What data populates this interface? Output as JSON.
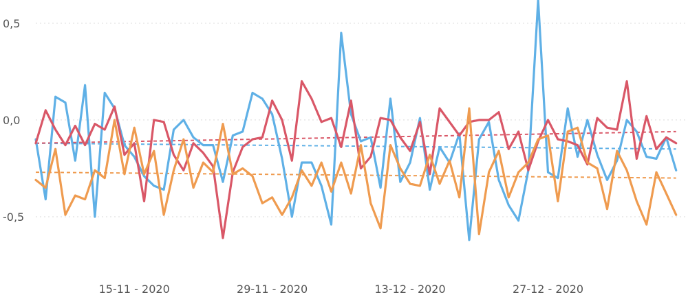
{
  "chart_data": {
    "type": "line",
    "title": "",
    "xlabel": "",
    "ylabel": "",
    "ylim": [
      -0.78,
      0.62
    ],
    "xlim": [
      "2020-11-05",
      "2021-01-10"
    ],
    "grid": true,
    "legend": "none",
    "yticks": [
      {
        "value": 0.5,
        "label": "0,5"
      },
      {
        "value": 0.0,
        "label": "0,0"
      },
      {
        "value": -0.5,
        "label": "-0,5"
      }
    ],
    "xticks": [
      {
        "value": "2020-11-15",
        "label": "15-11 - 2020"
      },
      {
        "value": "2020-11-29",
        "label": "29-11 - 2020"
      },
      {
        "value": "2020-12-13",
        "label": "13-12 - 2020"
      },
      {
        "value": "2020-12-27",
        "label": "27-12 - 2020"
      }
    ],
    "series": [
      {
        "color": "#5fb0e6",
        "start_date": "2020-11-05",
        "values": [
          -0.1,
          -0.41,
          0.12,
          0.09,
          -0.21,
          0.18,
          -0.5,
          0.14,
          0.06,
          -0.13,
          -0.19,
          -0.29,
          -0.34,
          -0.36,
          -0.05,
          0.0,
          -0.09,
          -0.13,
          -0.13,
          -0.32,
          -0.08,
          -0.06,
          0.14,
          0.11,
          0.03,
          -0.2,
          -0.5,
          -0.22,
          -0.22,
          -0.34,
          -0.54,
          0.45,
          0.03,
          -0.11,
          -0.09,
          -0.35,
          0.11,
          -0.32,
          -0.22,
          0.01,
          -0.36,
          -0.14,
          -0.22,
          -0.07,
          -0.62,
          -0.1,
          -0.01,
          -0.31,
          -0.44,
          -0.52,
          -0.26,
          0.62,
          -0.27,
          -0.3,
          0.06,
          -0.19,
          0.0,
          -0.18,
          -0.31,
          -0.21,
          0.0,
          -0.06,
          -0.19,
          -0.2,
          -0.09,
          -0.26
        ],
        "trend": [
          -0.12,
          -0.15
        ]
      },
      {
        "color": "#d95767",
        "start_date": "2020-11-05",
        "values": [
          -0.12,
          0.05,
          -0.05,
          -0.13,
          -0.03,
          -0.13,
          -0.02,
          -0.05,
          0.07,
          -0.18,
          -0.12,
          -0.42,
          0.0,
          -0.01,
          -0.18,
          -0.26,
          -0.12,
          -0.17,
          -0.24,
          -0.61,
          -0.27,
          -0.14,
          -0.1,
          -0.09,
          0.1,
          0.0,
          -0.21,
          0.2,
          0.11,
          -0.01,
          0.01,
          -0.14,
          0.1,
          -0.25,
          -0.19,
          0.01,
          0.0,
          -0.09,
          -0.16,
          -0.01,
          -0.28,
          0.06,
          -0.01,
          -0.08,
          -0.01,
          0.0,
          0.0,
          0.04,
          -0.15,
          -0.06,
          -0.26,
          -0.11,
          0.0,
          -0.1,
          -0.11,
          -0.13,
          -0.23,
          0.01,
          -0.04,
          -0.05,
          0.2,
          -0.2,
          0.02,
          -0.15,
          -0.09,
          -0.12
        ],
        "trend": [
          -0.12,
          -0.06
        ]
      },
      {
        "color": "#ef9b4f",
        "start_date": "2020-11-05",
        "values": [
          -0.31,
          -0.35,
          -0.15,
          -0.49,
          -0.39,
          -0.41,
          -0.26,
          -0.3,
          0.0,
          -0.28,
          -0.04,
          -0.28,
          -0.16,
          -0.49,
          -0.26,
          -0.1,
          -0.35,
          -0.22,
          -0.27,
          -0.02,
          -0.28,
          -0.25,
          -0.29,
          -0.43,
          -0.4,
          -0.49,
          -0.4,
          -0.26,
          -0.34,
          -0.22,
          -0.37,
          -0.22,
          -0.38,
          -0.13,
          -0.43,
          -0.56,
          -0.13,
          -0.25,
          -0.33,
          -0.34,
          -0.18,
          -0.33,
          -0.21,
          -0.4,
          0.06,
          -0.59,
          -0.27,
          -0.16,
          -0.4,
          -0.27,
          -0.22,
          -0.1,
          -0.08,
          -0.42,
          -0.06,
          -0.04,
          -0.22,
          -0.25,
          -0.46,
          -0.16,
          -0.26,
          -0.42,
          -0.54,
          -0.27,
          -0.38,
          -0.49
        ],
        "trend": [
          -0.27,
          -0.3
        ]
      }
    ]
  }
}
